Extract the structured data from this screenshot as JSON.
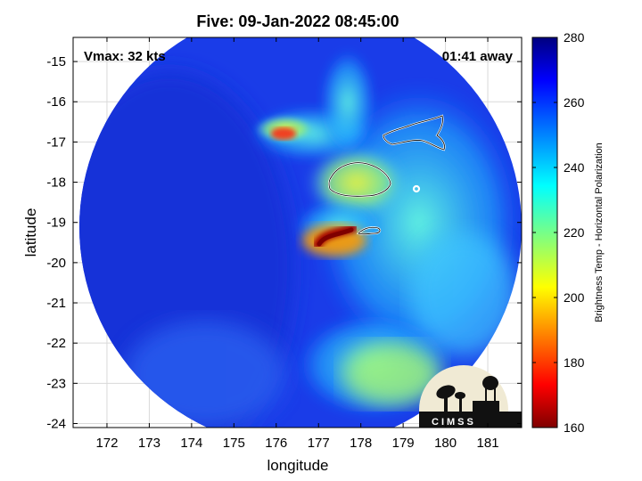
{
  "title": "Five: 09-Jan-2022 08:45:00",
  "vmax_text": "Vmax: 32 kts",
  "time_away_text": "01:41 away",
  "axes": {
    "xlabel": "longitude",
    "ylabel": "latitude",
    "xticks": [
      172,
      173,
      174,
      175,
      176,
      177,
      178,
      179,
      180,
      181
    ],
    "yticks": [
      -15,
      -16,
      -17,
      -18,
      -19,
      -20,
      -21,
      -22,
      -23,
      -24
    ],
    "xlim": [
      171.2,
      181.8
    ],
    "ylim": [
      -24.1,
      -14.4
    ]
  },
  "colorbar": {
    "label": "Brightness Temp - Horizontal Polarization",
    "ticks": [
      280,
      260,
      240,
      220,
      200,
      180,
      160
    ],
    "range": [
      160,
      280
    ],
    "colormap": "jet"
  },
  "swath": {
    "center_lon": 176.6,
    "center_lat": -19.4,
    "radius_deg": 5.2
  },
  "features": [
    {
      "name": "convective-core",
      "lon": 177.35,
      "lat": -19.4,
      "min_tb": 163
    },
    {
      "name": "convective-band",
      "lon": 175.9,
      "lat": -16.6,
      "min_tb": 185
    }
  ],
  "logo_text": "CIMSS",
  "colors": {
    "background": "#ffffff",
    "frame": "#000000",
    "grid": "#d9d9d9",
    "coast": "#ffffff"
  }
}
